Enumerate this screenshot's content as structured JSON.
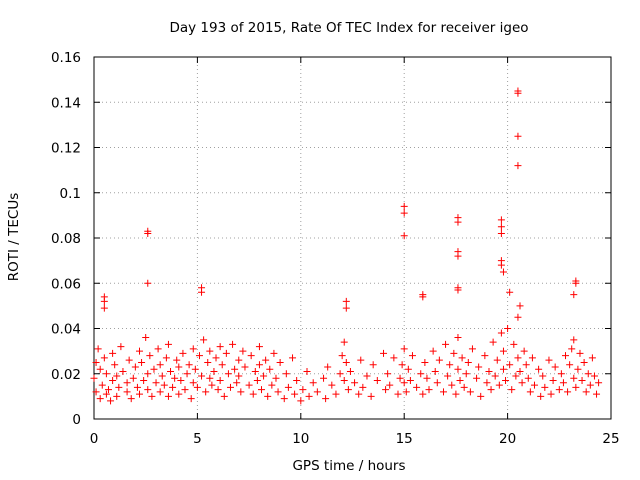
{
  "chart_data": {
    "type": "scatter",
    "title": "Day 193 of 2015, Rate Of TEC Index for receiver igeo",
    "xlabel": "GPS time / hours",
    "ylabel": "ROTI / TECUs",
    "xlim": [
      0,
      25
    ],
    "ylim": [
      0,
      0.16
    ],
    "xticks": [
      0,
      5,
      10,
      15,
      20,
      25
    ],
    "yticks": [
      0,
      0.02,
      0.04,
      0.06,
      0.08,
      0.1,
      0.12,
      0.14,
      0.16
    ],
    "xtick_labels": [
      "0",
      "5",
      "10",
      "15",
      "20",
      "25"
    ],
    "ytick_labels": [
      "0",
      "0.02",
      "0.04",
      "0.06",
      "0.08",
      "0.1",
      "0.12",
      "0.14",
      "0.16"
    ],
    "grid": true,
    "marker": "+",
    "color": "#ff0000",
    "series": [
      {
        "name": "ROTI",
        "x": [
          0.0,
          0.1,
          0.1,
          0.2,
          0.3,
          0.3,
          0.4,
          0.5,
          0.6,
          0.6,
          0.7,
          0.8,
          0.9,
          0.9,
          1.0,
          1.1,
          1.1,
          1.2,
          1.3,
          1.4,
          1.6,
          1.6,
          1.7,
          1.8,
          1.9,
          2.0,
          2.1,
          2.2,
          2.2,
          2.3,
          2.4,
          2.5,
          2.6,
          2.6,
          2.7,
          2.8,
          2.9,
          3.0,
          3.1,
          3.2,
          3.2,
          3.3,
          3.4,
          3.5,
          3.6,
          3.6,
          3.7,
          3.8,
          3.9,
          4.0,
          4.1,
          4.1,
          4.2,
          4.3,
          4.4,
          4.5,
          4.6,
          4.7,
          4.8,
          4.8,
          4.9,
          5.0,
          5.1,
          5.2,
          5.3,
          5.4,
          5.5,
          5.6,
          5.6,
          5.7,
          5.8,
          5.9,
          6.0,
          6.1,
          6.1,
          6.2,
          6.3,
          6.4,
          6.5,
          6.6,
          6.7,
          6.8,
          6.9,
          7.0,
          7.0,
          7.1,
          7.2,
          7.3,
          7.5,
          7.6,
          7.7,
          7.8,
          7.9,
          8.0,
          8.0,
          8.1,
          8.2,
          8.3,
          8.4,
          8.5,
          8.6,
          8.7,
          8.8,
          8.9,
          9.0,
          9.2,
          9.3,
          9.4,
          9.6,
          9.7,
          9.8,
          10.0,
          10.1,
          10.3,
          10.4,
          10.6,
          10.8,
          11.1,
          11.2,
          11.3,
          11.5,
          11.7,
          11.9,
          12.0,
          12.1,
          12.1,
          12.2,
          12.3,
          12.4,
          12.6,
          12.8,
          12.9,
          13.0,
          13.2,
          13.4,
          13.5,
          13.7,
          14.0,
          14.1,
          14.2,
          14.3,
          14.5,
          14.7,
          14.8,
          14.9,
          15.0,
          15.0,
          15.1,
          15.2,
          15.3,
          15.4,
          15.6,
          15.8,
          15.9,
          16.0,
          16.1,
          16.2,
          16.4,
          16.5,
          16.6,
          16.7,
          16.9,
          17.0,
          17.1,
          17.2,
          17.3,
          17.4,
          17.5,
          17.6,
          17.6,
          17.7,
          17.8,
          17.9,
          18.0,
          18.1,
          18.2,
          18.3,
          18.5,
          18.6,
          18.7,
          18.9,
          19.0,
          19.1,
          19.2,
          19.3,
          19.4,
          19.5,
          19.6,
          19.7,
          19.8,
          19.8,
          19.9,
          20.0,
          20.1,
          20.2,
          20.3,
          20.4,
          20.5,
          20.5,
          20.6,
          20.7,
          20.8,
          20.9,
          21.0,
          21.1,
          21.2,
          21.3,
          21.5,
          21.6,
          21.7,
          21.8,
          22.0,
          22.1,
          22.2,
          22.3,
          22.5,
          22.6,
          22.7,
          22.8,
          22.9,
          23.0,
          23.1,
          23.2,
          23.2,
          23.3,
          23.4,
          23.5,
          23.6,
          23.7,
          23.8,
          23.9,
          24.0,
          24.1,
          24.2,
          24.3,
          24.4
        ],
        "y": [
          0.018,
          0.025,
          0.012,
          0.031,
          0.009,
          0.022,
          0.015,
          0.027,
          0.011,
          0.02,
          0.013,
          0.008,
          0.029,
          0.017,
          0.024,
          0.01,
          0.019,
          0.014,
          0.032,
          0.021,
          0.016,
          0.012,
          0.026,
          0.009,
          0.018,
          0.023,
          0.014,
          0.03,
          0.011,
          0.025,
          0.017,
          0.036,
          0.02,
          0.013,
          0.028,
          0.01,
          0.022,
          0.016,
          0.031,
          0.012,
          0.024,
          0.019,
          0.015,
          0.027,
          0.01,
          0.033,
          0.021,
          0.014,
          0.018,
          0.026,
          0.011,
          0.023,
          0.017,
          0.029,
          0.013,
          0.02,
          0.024,
          0.009,
          0.031,
          0.016,
          0.022,
          0.014,
          0.028,
          0.019,
          0.035,
          0.012,
          0.025,
          0.018,
          0.03,
          0.015,
          0.021,
          0.027,
          0.013,
          0.032,
          0.017,
          0.024,
          0.01,
          0.029,
          0.02,
          0.014,
          0.033,
          0.022,
          0.016,
          0.026,
          0.019,
          0.012,
          0.03,
          0.023,
          0.015,
          0.028,
          0.011,
          0.021,
          0.017,
          0.032,
          0.024,
          0.013,
          0.019,
          0.026,
          0.01,
          0.022,
          0.015,
          0.029,
          0.018,
          0.012,
          0.025,
          0.009,
          0.02,
          0.014,
          0.027,
          0.011,
          0.017,
          0.008,
          0.013,
          0.021,
          0.01,
          0.016,
          0.012,
          0.018,
          0.009,
          0.023,
          0.015,
          0.011,
          0.02,
          0.028,
          0.034,
          0.017,
          0.025,
          0.013,
          0.021,
          0.016,
          0.011,
          0.026,
          0.014,
          0.019,
          0.01,
          0.024,
          0.017,
          0.029,
          0.013,
          0.02,
          0.015,
          0.027,
          0.011,
          0.018,
          0.024,
          0.016,
          0.031,
          0.012,
          0.022,
          0.017,
          0.028,
          0.014,
          0.02,
          0.011,
          0.025,
          0.018,
          0.013,
          0.03,
          0.021,
          0.016,
          0.026,
          0.012,
          0.033,
          0.019,
          0.024,
          0.015,
          0.029,
          0.011,
          0.022,
          0.036,
          0.017,
          0.027,
          0.014,
          0.02,
          0.025,
          0.012,
          0.031,
          0.018,
          0.023,
          0.01,
          0.028,
          0.016,
          0.021,
          0.013,
          0.034,
          0.019,
          0.026,
          0.015,
          0.038,
          0.022,
          0.03,
          0.017,
          0.04,
          0.024,
          0.013,
          0.033,
          0.019,
          0.027,
          0.045,
          0.021,
          0.016,
          0.03,
          0.024,
          0.018,
          0.012,
          0.027,
          0.015,
          0.022,
          0.01,
          0.019,
          0.014,
          0.026,
          0.011,
          0.017,
          0.023,
          0.013,
          0.02,
          0.016,
          0.028,
          0.012,
          0.024,
          0.031,
          0.018,
          0.035,
          0.014,
          0.022,
          0.029,
          0.017,
          0.025,
          0.012,
          0.02,
          0.015,
          0.027,
          0.019,
          0.011,
          0.016
        ],
        "outliers": {
          "x": [
            0.5,
            0.5,
            0.5,
            2.6,
            2.6,
            2.6,
            5.2,
            5.2,
            12.2,
            12.2,
            15.0,
            15.0,
            15.0,
            15.9,
            15.9,
            17.6,
            17.6,
            17.6,
            17.6,
            17.6,
            17.6,
            19.7,
            19.7,
            19.7,
            19.7,
            19.7,
            19.8,
            20.1,
            20.5,
            20.5,
            20.5,
            20.5,
            20.6,
            23.2,
            23.3,
            23.3
          ],
          "y": [
            0.054,
            0.052,
            0.049,
            0.083,
            0.082,
            0.06,
            0.058,
            0.056,
            0.052,
            0.049,
            0.094,
            0.091,
            0.081,
            0.055,
            0.054,
            0.089,
            0.087,
            0.074,
            0.072,
            0.058,
            0.057,
            0.088,
            0.085,
            0.082,
            0.07,
            0.068,
            0.065,
            0.056,
            0.145,
            0.144,
            0.125,
            0.112,
            0.05,
            0.055,
            0.061,
            0.06
          ]
        }
      }
    ]
  }
}
